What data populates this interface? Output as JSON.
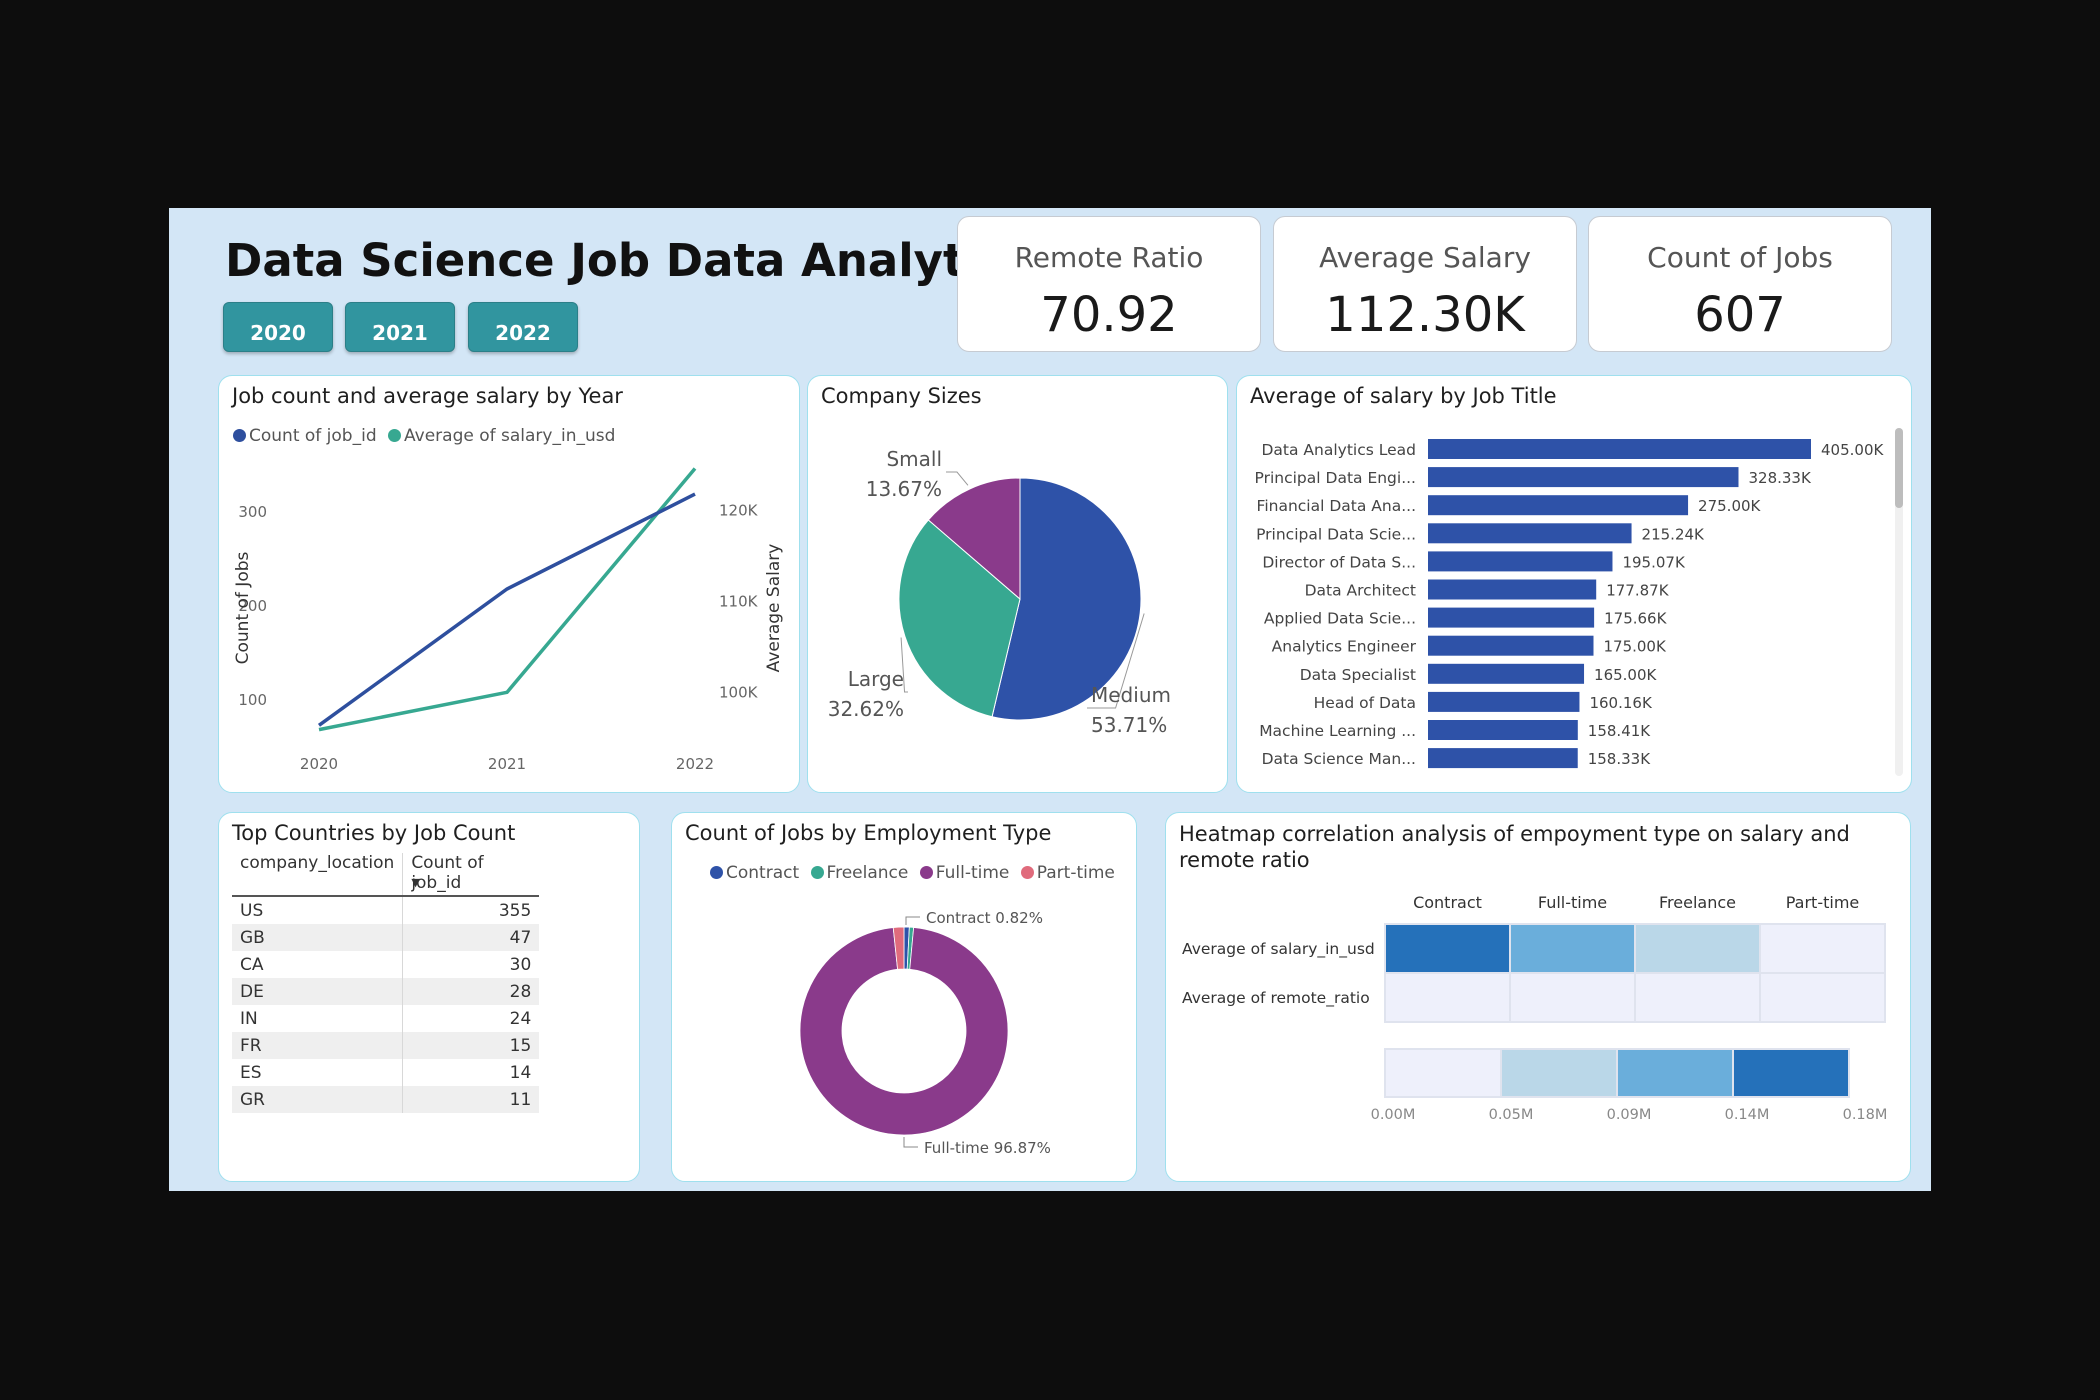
{
  "page": {
    "title": "Data Science Job Data Analytics",
    "year_buttons": [
      "2020",
      "2021",
      "2022"
    ]
  },
  "kpis": [
    {
      "label": "Remote Ratio",
      "value": "70.92"
    },
    {
      "label": "Average Salary",
      "value": "112.30K"
    },
    {
      "label": "Count of Jobs",
      "value": "607"
    }
  ],
  "colors": {
    "count_series": "#2e4f9e",
    "salary_series": "#37a891",
    "medium": "#2e52a8",
    "large": "#37a891",
    "small": "#8a3a8b",
    "contract": "#2e52a8",
    "freelance": "#37a891",
    "fulltime": "#8a3a8b",
    "parttime": "#e06b7c",
    "bar": "#2e52a8",
    "heat_high": "#2571ba",
    "heat_mid": "#6aaedb",
    "heat_low": "#bad7e8",
    "heat_min": "#eef0fb"
  },
  "chart_data": [
    {
      "type": "line",
      "title": "Job count and average salary by Year",
      "x": [
        "2020",
        "2021",
        "2022"
      ],
      "ylabel": "Count of Jobs",
      "y2label": "Average Salary",
      "yticks": [
        "100",
        "200",
        "300"
      ],
      "y2ticks": [
        "100K",
        "110K",
        "120K"
      ],
      "ylim": [
        50,
        350
      ],
      "y2lim": [
        94000,
        125000
      ],
      "series": [
        {
          "name": "Count of job_id",
          "axis": "left",
          "values": [
            72,
            217,
            318
          ]
        },
        {
          "name": "Average of salary_in_usd",
          "axis": "right",
          "values": [
            95800,
            99900,
            124500
          ]
        }
      ]
    },
    {
      "type": "pie",
      "title": "Company Sizes",
      "slices": [
        {
          "label": "Medium",
          "value": 53.71,
          "text": "53.71%"
        },
        {
          "label": "Large",
          "value": 32.62,
          "text": "32.62%"
        },
        {
          "label": "Small",
          "value": 13.67,
          "text": "13.67%"
        }
      ]
    },
    {
      "type": "bar",
      "orientation": "horizontal",
      "title": "Average of salary by Job Title",
      "xlim": [
        0,
        405000
      ],
      "categories": [
        "Data Analytics Lead",
        "Principal Data Engi...",
        "Financial Data Ana...",
        "Principal Data Scie...",
        "Director of Data S...",
        "Data Architect",
        "Applied Data Scie...",
        "Analytics Engineer",
        "Data Specialist",
        "Head of Data",
        "Machine Learning ...",
        "Data Science Man..."
      ],
      "values": [
        405000,
        328330,
        275000,
        215240,
        195070,
        177870,
        175660,
        175000,
        165000,
        160160,
        158410,
        158330
      ],
      "labels": [
        "405.00K",
        "328.33K",
        "275.00K",
        "215.24K",
        "195.07K",
        "177.87K",
        "175.66K",
        "175.00K",
        "165.00K",
        "160.16K",
        "158.41K",
        "158.33K"
      ]
    },
    {
      "type": "table",
      "title": "Top Countries by Job Count",
      "columns": [
        "company_location",
        "Count of job_id"
      ],
      "rows": [
        [
          "US",
          "355"
        ],
        [
          "GB",
          "47"
        ],
        [
          "CA",
          "30"
        ],
        [
          "DE",
          "28"
        ],
        [
          "IN",
          "24"
        ],
        [
          "FR",
          "15"
        ],
        [
          "ES",
          "14"
        ],
        [
          "GR",
          "11"
        ]
      ]
    },
    {
      "type": "pie",
      "variant": "donut",
      "title": "Count of Jobs by Employment Type",
      "legend": [
        "Contract",
        "Freelance",
        "Full-time",
        "Part-time"
      ],
      "slices": [
        {
          "label": "Contract",
          "value": 0.82,
          "text": "Contract 0.82%"
        },
        {
          "label": "Freelance",
          "value": 0.66
        },
        {
          "label": "Full-time",
          "value": 96.87,
          "text": "Full-time 96.87%"
        },
        {
          "label": "Part-time",
          "value": 1.65
        }
      ]
    },
    {
      "type": "heatmap",
      "title": "Heatmap correlation analysis of empoyment type on salary and remote ratio",
      "columns": [
        "Contract",
        "Full-time",
        "Freelance",
        "Part-time"
      ],
      "rows": [
        "Average of salary_in_usd",
        "Average of remote_ratio"
      ],
      "values": [
        [
          184575,
          113468,
          48000,
          33070
        ],
        [
          81,
          71,
          50,
          45
        ]
      ],
      "scale_ticks": [
        "0.00M",
        "0.05M",
        "0.09M",
        "0.14M",
        "0.18M"
      ],
      "scale_range": [
        0,
        184575
      ]
    }
  ]
}
